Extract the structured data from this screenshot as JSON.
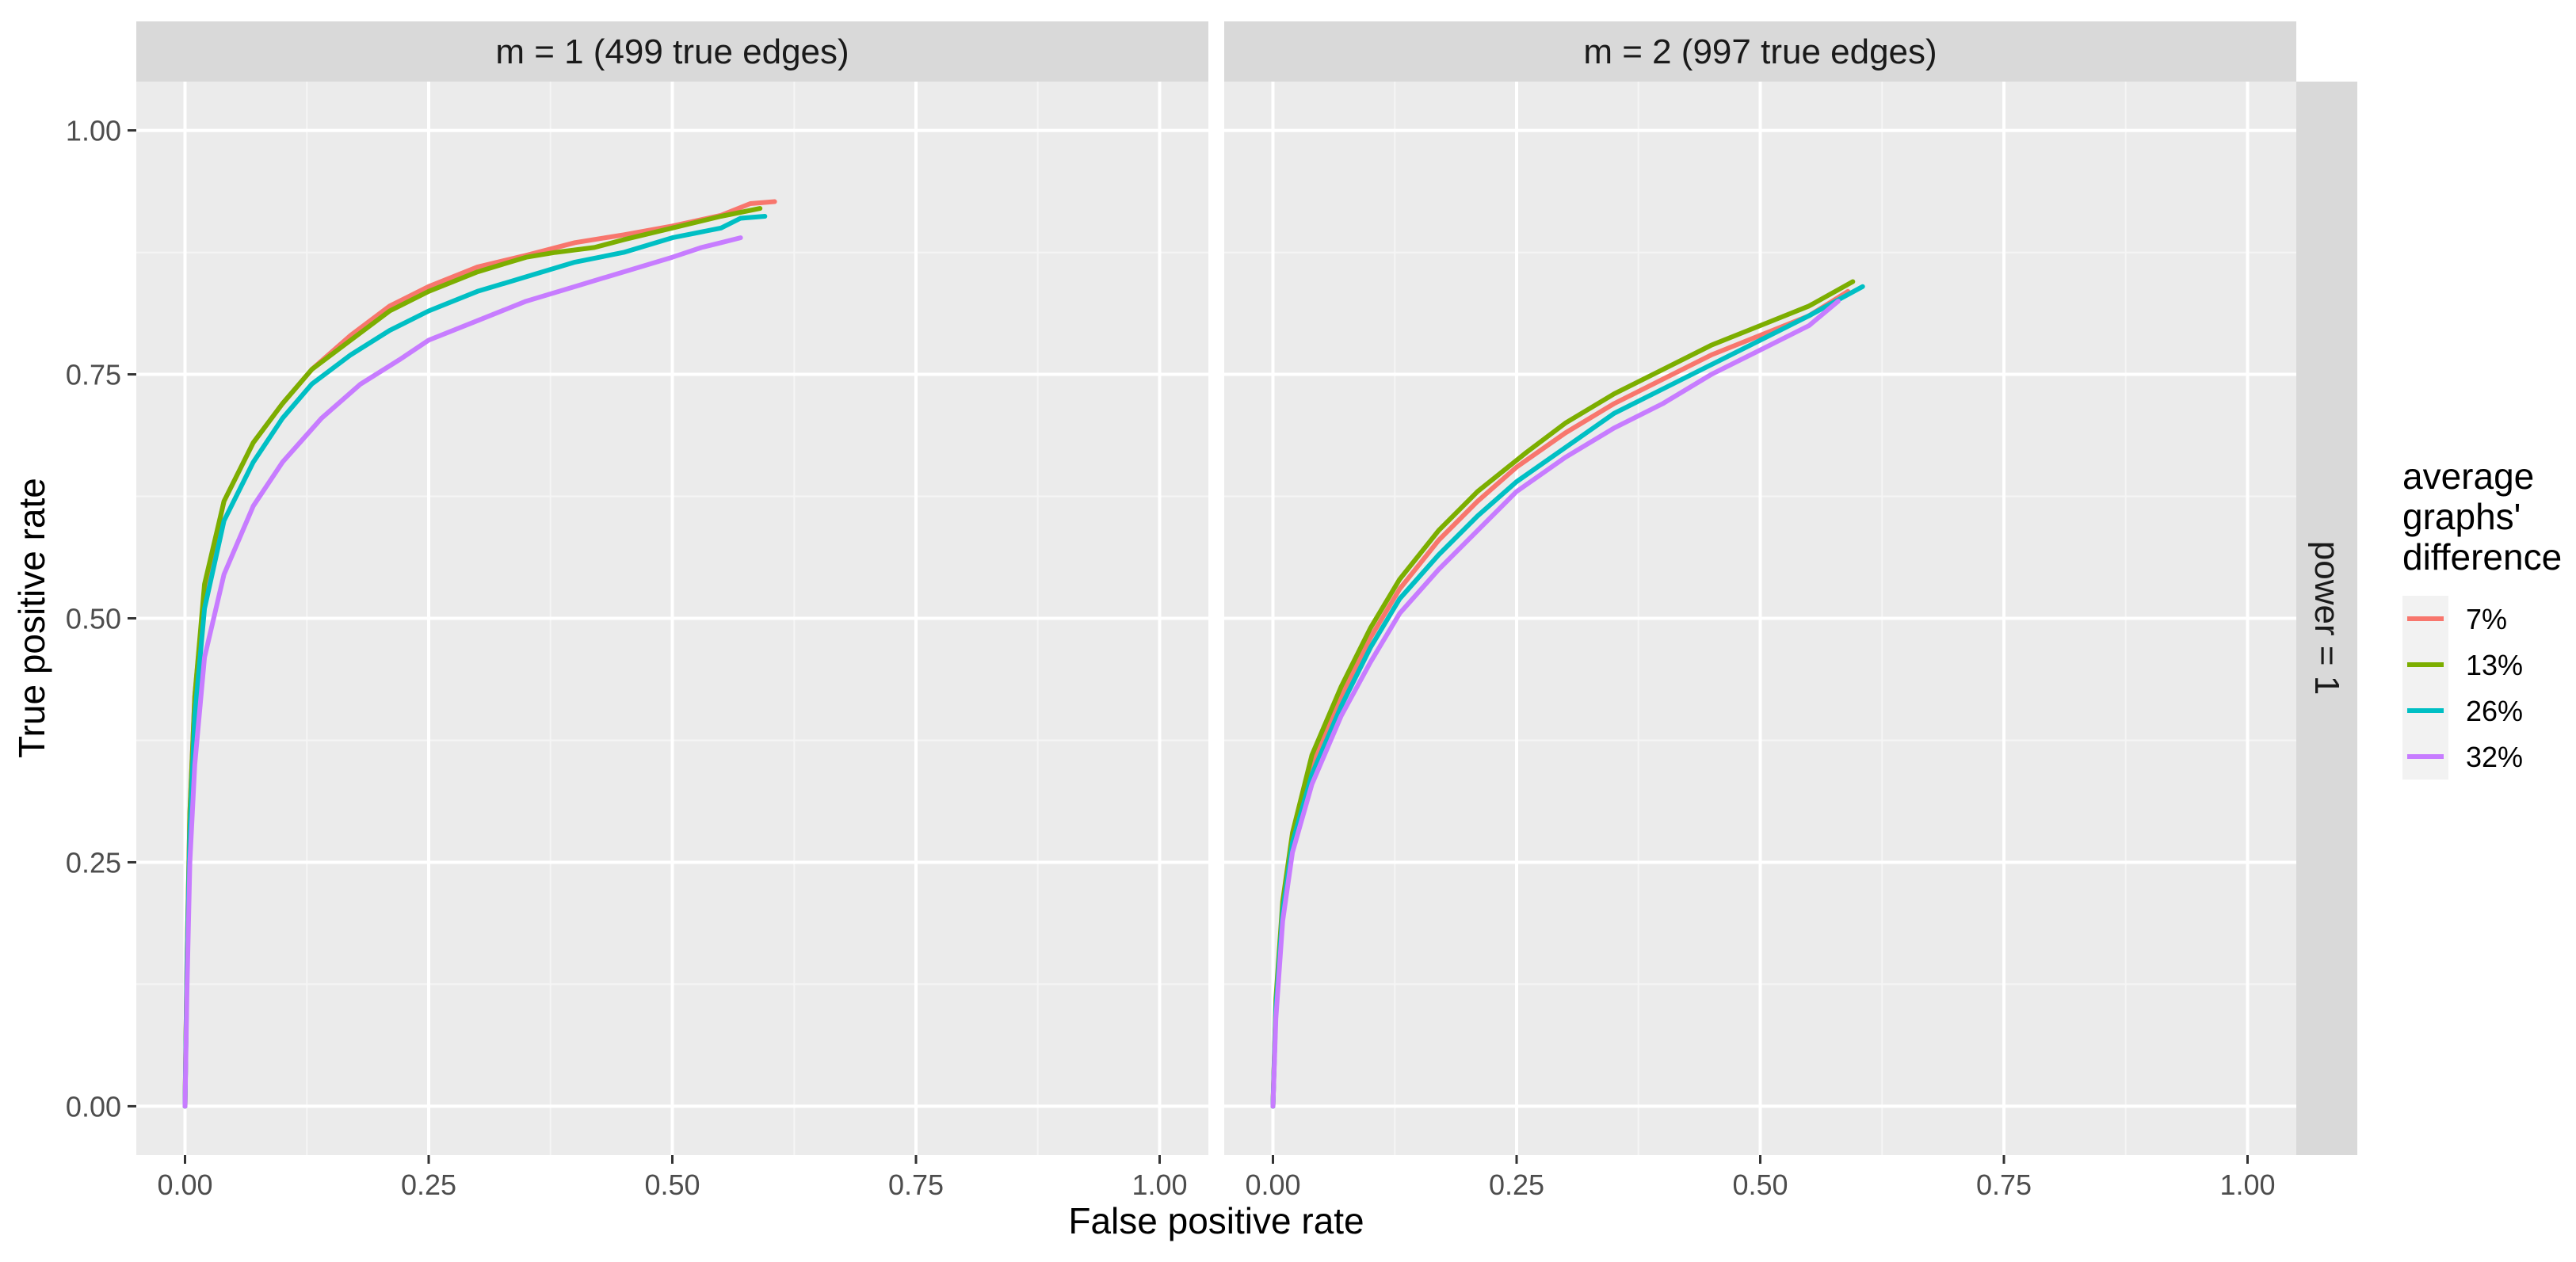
{
  "chart_data": {
    "type": "line",
    "xlabel": "False positive rate",
    "ylabel": "True positive rate",
    "xlim": [
      -0.05,
      1.05
    ],
    "ylim": [
      -0.05,
      1.05
    ],
    "x_ticks": [
      0,
      0.25,
      0.5,
      0.75,
      1
    ],
    "x_tick_labels": [
      "0.00",
      "0.25",
      "0.50",
      "0.75",
      "1.00"
    ],
    "y_ticks": [
      0,
      0.25,
      0.5,
      0.75,
      1
    ],
    "y_tick_labels": [
      "0.00",
      "0.25",
      "0.50",
      "0.75",
      "1.00"
    ],
    "grid": true,
    "row_strip": "power = 1",
    "legend": {
      "title_lines": [
        "average",
        "graphs'",
        "difference"
      ],
      "position": "right",
      "items": [
        {
          "label": "7%",
          "color": "#F8766D"
        },
        {
          "label": "13%",
          "color": "#7CAE00"
        },
        {
          "label": "26%",
          "color": "#00BFC4"
        },
        {
          "label": "32%",
          "color": "#C77CFF"
        }
      ]
    },
    "panels": [
      {
        "strip": "m = 1 (499 true edges)",
        "series": [
          {
            "name": "7%",
            "color": "#F8766D",
            "points": [
              [
                0,
                0
              ],
              [
                0.002,
                0.15
              ],
              [
                0.005,
                0.3
              ],
              [
                0.01,
                0.42
              ],
              [
                0.02,
                0.53
              ],
              [
                0.04,
                0.62
              ],
              [
                0.07,
                0.68
              ],
              [
                0.1,
                0.72
              ],
              [
                0.13,
                0.755
              ],
              [
                0.17,
                0.79
              ],
              [
                0.21,
                0.82
              ],
              [
                0.25,
                0.84
              ],
              [
                0.3,
                0.86
              ],
              [
                0.35,
                0.872
              ],
              [
                0.4,
                0.885
              ],
              [
                0.45,
                0.893
              ],
              [
                0.5,
                0.902
              ],
              [
                0.55,
                0.913
              ],
              [
                0.58,
                0.925
              ],
              [
                0.605,
                0.927
              ]
            ]
          },
          {
            "name": "13%",
            "color": "#7CAE00",
            "points": [
              [
                0,
                0
              ],
              [
                0.002,
                0.15
              ],
              [
                0.005,
                0.3
              ],
              [
                0.01,
                0.42
              ],
              [
                0.02,
                0.535
              ],
              [
                0.04,
                0.62
              ],
              [
                0.07,
                0.68
              ],
              [
                0.1,
                0.72
              ],
              [
                0.13,
                0.755
              ],
              [
                0.17,
                0.785
              ],
              [
                0.21,
                0.815
              ],
              [
                0.25,
                0.835
              ],
              [
                0.3,
                0.855
              ],
              [
                0.35,
                0.87
              ],
              [
                0.38,
                0.875
              ],
              [
                0.42,
                0.88
              ],
              [
                0.45,
                0.888
              ],
              [
                0.5,
                0.9
              ],
              [
                0.55,
                0.912
              ],
              [
                0.59,
                0.92
              ]
            ]
          },
          {
            "name": "26%",
            "color": "#00BFC4",
            "points": [
              [
                0,
                0
              ],
              [
                0.002,
                0.14
              ],
              [
                0.005,
                0.28
              ],
              [
                0.01,
                0.4
              ],
              [
                0.02,
                0.51
              ],
              [
                0.04,
                0.6
              ],
              [
                0.07,
                0.66
              ],
              [
                0.1,
                0.705
              ],
              [
                0.13,
                0.74
              ],
              [
                0.17,
                0.77
              ],
              [
                0.21,
                0.795
              ],
              [
                0.25,
                0.815
              ],
              [
                0.3,
                0.835
              ],
              [
                0.35,
                0.85
              ],
              [
                0.4,
                0.865
              ],
              [
                0.45,
                0.875
              ],
              [
                0.5,
                0.89
              ],
              [
                0.55,
                0.9
              ],
              [
                0.57,
                0.91
              ],
              [
                0.595,
                0.912
              ]
            ]
          },
          {
            "name": "32%",
            "color": "#C77CFF",
            "points": [
              [
                0,
                0
              ],
              [
                0.002,
                0.12
              ],
              [
                0.005,
                0.25
              ],
              [
                0.01,
                0.35
              ],
              [
                0.02,
                0.46
              ],
              [
                0.04,
                0.545
              ],
              [
                0.07,
                0.615
              ],
              [
                0.1,
                0.66
              ],
              [
                0.14,
                0.705
              ],
              [
                0.18,
                0.74
              ],
              [
                0.22,
                0.765
              ],
              [
                0.25,
                0.785
              ],
              [
                0.3,
                0.805
              ],
              [
                0.35,
                0.825
              ],
              [
                0.4,
                0.84
              ],
              [
                0.45,
                0.855
              ],
              [
                0.5,
                0.87
              ],
              [
                0.53,
                0.88
              ],
              [
                0.55,
                0.885
              ],
              [
                0.57,
                0.89
              ]
            ]
          }
        ]
      },
      {
        "strip": "m = 2 (997 true edges)",
        "series": [
          {
            "name": "7%",
            "color": "#F8766D",
            "points": [
              [
                0,
                0
              ],
              [
                0.003,
                0.1
              ],
              [
                0.01,
                0.2
              ],
              [
                0.02,
                0.27
              ],
              [
                0.04,
                0.35
              ],
              [
                0.07,
                0.42
              ],
              [
                0.1,
                0.48
              ],
              [
                0.13,
                0.53
              ],
              [
                0.17,
                0.58
              ],
              [
                0.21,
                0.62
              ],
              [
                0.25,
                0.655
              ],
              [
                0.3,
                0.69
              ],
              [
                0.35,
                0.72
              ],
              [
                0.4,
                0.745
              ],
              [
                0.45,
                0.77
              ],
              [
                0.5,
                0.79
              ],
              [
                0.55,
                0.81
              ],
              [
                0.59,
                0.835
              ]
            ]
          },
          {
            "name": "13%",
            "color": "#7CAE00",
            "points": [
              [
                0,
                0
              ],
              [
                0.003,
                0.11
              ],
              [
                0.01,
                0.21
              ],
              [
                0.02,
                0.28
              ],
              [
                0.04,
                0.36
              ],
              [
                0.07,
                0.43
              ],
              [
                0.1,
                0.49
              ],
              [
                0.13,
                0.54
              ],
              [
                0.17,
                0.59
              ],
              [
                0.21,
                0.63
              ],
              [
                0.26,
                0.67
              ],
              [
                0.3,
                0.7
              ],
              [
                0.35,
                0.73
              ],
              [
                0.4,
                0.755
              ],
              [
                0.45,
                0.78
              ],
              [
                0.5,
                0.8
              ],
              [
                0.55,
                0.82
              ],
              [
                0.595,
                0.845
              ]
            ]
          },
          {
            "name": "26%",
            "color": "#00BFC4",
            "points": [
              [
                0,
                0
              ],
              [
                0.003,
                0.1
              ],
              [
                0.01,
                0.2
              ],
              [
                0.02,
                0.27
              ],
              [
                0.04,
                0.34
              ],
              [
                0.07,
                0.41
              ],
              [
                0.1,
                0.47
              ],
              [
                0.13,
                0.52
              ],
              [
                0.17,
                0.565
              ],
              [
                0.21,
                0.605
              ],
              [
                0.25,
                0.64
              ],
              [
                0.3,
                0.675
              ],
              [
                0.35,
                0.71
              ],
              [
                0.4,
                0.735
              ],
              [
                0.45,
                0.76
              ],
              [
                0.5,
                0.785
              ],
              [
                0.55,
                0.81
              ],
              [
                0.605,
                0.84
              ]
            ]
          },
          {
            "name": "32%",
            "color": "#C77CFF",
            "points": [
              [
                0,
                0
              ],
              [
                0.003,
                0.09
              ],
              [
                0.01,
                0.19
              ],
              [
                0.02,
                0.26
              ],
              [
                0.04,
                0.33
              ],
              [
                0.07,
                0.4
              ],
              [
                0.1,
                0.455
              ],
              [
                0.13,
                0.505
              ],
              [
                0.17,
                0.55
              ],
              [
                0.21,
                0.59
              ],
              [
                0.25,
                0.63
              ],
              [
                0.3,
                0.665
              ],
              [
                0.35,
                0.695
              ],
              [
                0.4,
                0.72
              ],
              [
                0.45,
                0.75
              ],
              [
                0.5,
                0.775
              ],
              [
                0.55,
                0.8
              ],
              [
                0.58,
                0.825
              ]
            ]
          }
        ]
      }
    ]
  }
}
